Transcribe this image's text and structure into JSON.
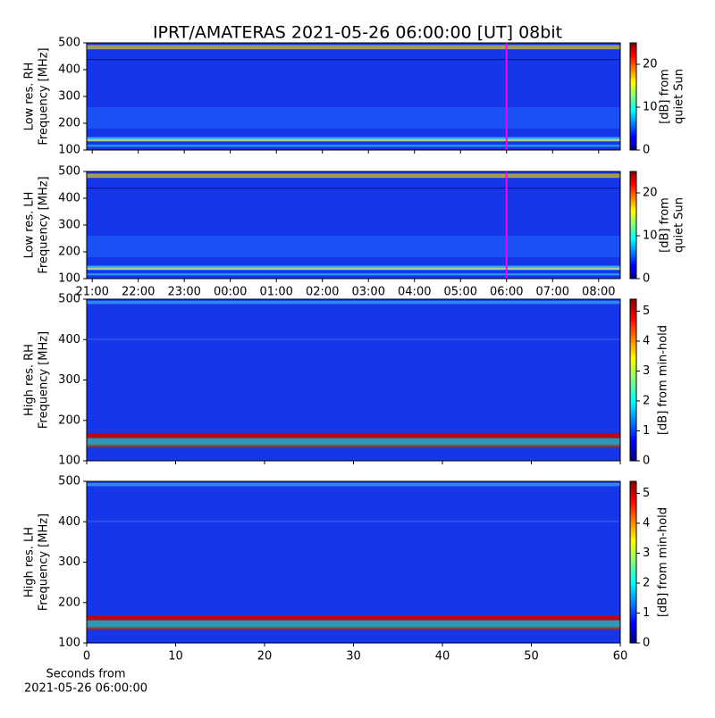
{
  "chart_data": [
    {
      "type": "heatmap",
      "title": "IPRT/AMATERAS 2021-05-26 06:00:00 [UT]   08bit",
      "ylabel": [
        "Low res. RH",
        "Frequency [MHz]"
      ],
      "ylim": [
        100,
        500
      ],
      "yticks": [
        100,
        200,
        300,
        400,
        500
      ],
      "xlim": [
        20.88,
        32.47
      ],
      "marker": 30,
      "marker_color": "#ff00ff",
      "clim": [
        0,
        25
      ],
      "cticks": [
        0,
        10,
        20
      ],
      "clabel": [
        "[dB] from",
        "quiet Sun"
      ]
    },
    {
      "type": "heatmap",
      "ylabel": [
        "Low res. LH",
        "Frequency [MHz]"
      ],
      "ylim": [
        100,
        500
      ],
      "yticks": [
        100,
        200,
        300,
        400,
        500
      ],
      "xlim": [
        20.88,
        32.47
      ],
      "xticks": [
        {
          "value": 21,
          "label": "21:00"
        },
        {
          "value": 22,
          "label": "22:00"
        },
        {
          "value": 23,
          "label": "23:00"
        },
        {
          "value": 24,
          "label": "00:00"
        },
        {
          "value": 25,
          "label": "01:00"
        },
        {
          "value": 26,
          "label": "02:00"
        },
        {
          "value": 27,
          "label": "03:00"
        },
        {
          "value": 28,
          "label": "04:00"
        },
        {
          "value": 29,
          "label": "05:00"
        },
        {
          "value": 30,
          "label": "06:00"
        },
        {
          "value": 31,
          "label": "07:00"
        },
        {
          "value": 32,
          "label": "08:00"
        }
      ],
      "marker": 30,
      "marker_color": "#ff00ff",
      "clim": [
        0,
        25
      ],
      "cticks": [
        0,
        10,
        20
      ],
      "clabel": [
        "[dB] from",
        "quiet Sun"
      ]
    },
    {
      "type": "heatmap",
      "ylabel": [
        "High res. RH",
        "Frequency [MHz]"
      ],
      "ylim": [
        100,
        500
      ],
      "yticks": [
        100,
        200,
        300,
        400,
        500
      ],
      "xlim": [
        0,
        60
      ],
      "clim": [
        0,
        5.4
      ],
      "cticks": [
        0,
        1,
        2,
        3,
        4,
        5
      ],
      "clabel": [
        "[dB] from min-hold"
      ]
    },
    {
      "type": "heatmap",
      "ylabel": [
        "High res. LH",
        "Frequency [MHz]"
      ],
      "ylim": [
        100,
        500
      ],
      "yticks": [
        100,
        200,
        300,
        400,
        500
      ],
      "xlim": [
        0,
        60
      ],
      "xticks": [
        0,
        10,
        20,
        30,
        40,
        50,
        60
      ],
      "xlabel": [
        "Seconds from",
        "2021-05-26 06:00:00"
      ],
      "clim": [
        0,
        5.4
      ],
      "cticks": [
        0,
        1,
        2,
        3,
        4,
        5
      ],
      "clabel": [
        "[dB] from min-hold"
      ]
    }
  ]
}
